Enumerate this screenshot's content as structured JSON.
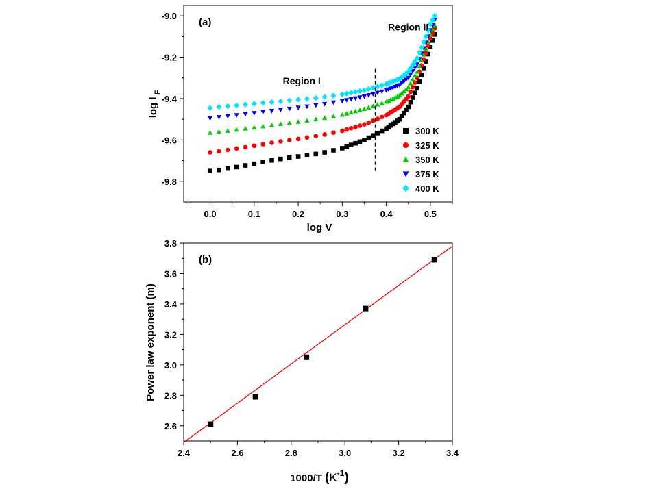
{
  "chart_data": [
    {
      "type": "scatter",
      "panel_label": "(a)",
      "xlabel": "log V",
      "ylabel_main": "log I",
      "ylabel_sub": "F",
      "xlim": [
        -0.06,
        0.55
      ],
      "ylim": [
        -9.9,
        -8.95
      ],
      "xticks": [
        0.0,
        0.1,
        0.2,
        0.3,
        0.4,
        0.5
      ],
      "xtick_labels": [
        "0.0",
        "0.1",
        "0.2",
        "0.3",
        "0.4",
        "0.5"
      ],
      "yticks": [
        -9.8,
        -9.6,
        -9.4,
        -9.2,
        -9.0
      ],
      "ytick_labels": [
        "-9.8",
        "-9.6",
        "-9.4",
        "-9.2",
        "-9.0"
      ],
      "annotations": [
        {
          "text": "Region I",
          "x": 0.165,
          "y": -9.33
        },
        {
          "text": "Region II",
          "x": 0.45,
          "y": -9.07
        }
      ],
      "divider_x": 0.375,
      "divider_y": [
        -9.75,
        -9.25
      ],
      "legend_position": "bottom-right",
      "series": [
        {
          "name": "300 K",
          "marker": "square",
          "color": "#000000",
          "anchors": [
            [
              0.0,
              -9.75
            ],
            [
              0.02,
              -9.745
            ],
            [
              0.05,
              -9.735
            ],
            [
              0.1,
              -9.715
            ],
            [
              0.15,
              -9.695
            ],
            [
              0.2,
              -9.68
            ],
            [
              0.25,
              -9.665
            ],
            [
              0.3,
              -9.64
            ],
            [
              0.35,
              -9.6
            ],
            [
              0.4,
              -9.545
            ],
            [
              0.43,
              -9.5
            ],
            [
              0.45,
              -9.44
            ],
            [
              0.47,
              -9.35
            ],
            [
              0.49,
              -9.22
            ],
            [
              0.5,
              -9.15
            ],
            [
              0.51,
              -9.09
            ]
          ]
        },
        {
          "name": "325 K",
          "marker": "circle",
          "color": "#ff0000",
          "anchors": [
            [
              0.0,
              -9.66
            ],
            [
              0.02,
              -9.655
            ],
            [
              0.05,
              -9.645
            ],
            [
              0.1,
              -9.628
            ],
            [
              0.15,
              -9.61
            ],
            [
              0.2,
              -9.595
            ],
            [
              0.25,
              -9.578
            ],
            [
              0.3,
              -9.556
            ],
            [
              0.35,
              -9.525
            ],
            [
              0.4,
              -9.48
            ],
            [
              0.43,
              -9.44
            ],
            [
              0.45,
              -9.39
            ],
            [
              0.47,
              -9.3
            ],
            [
              0.49,
              -9.18
            ],
            [
              0.5,
              -9.11
            ],
            [
              0.51,
              -9.06
            ]
          ]
        },
        {
          "name": "350 K",
          "marker": "triangle-up",
          "color": "#00cc00",
          "anchors": [
            [
              0.0,
              -9.565
            ],
            [
              0.02,
              -9.56
            ],
            [
              0.05,
              -9.553
            ],
            [
              0.1,
              -9.54
            ],
            [
              0.15,
              -9.525
            ],
            [
              0.2,
              -9.512
            ],
            [
              0.25,
              -9.497
            ],
            [
              0.3,
              -9.478
            ],
            [
              0.35,
              -9.45
            ],
            [
              0.4,
              -9.415
            ],
            [
              0.43,
              -9.385
            ],
            [
              0.45,
              -9.345
            ],
            [
              0.47,
              -9.27
            ],
            [
              0.49,
              -9.16
            ],
            [
              0.5,
              -9.09
            ],
            [
              0.51,
              -9.045
            ]
          ]
        },
        {
          "name": "375 K",
          "marker": "triangle-down",
          "color": "#0000ff",
          "anchors": [
            [
              0.0,
              -9.495
            ],
            [
              0.02,
              -9.49
            ],
            [
              0.05,
              -9.483
            ],
            [
              0.1,
              -9.47
            ],
            [
              0.15,
              -9.457
            ],
            [
              0.2,
              -9.444
            ],
            [
              0.25,
              -9.43
            ],
            [
              0.3,
              -9.412
            ],
            [
              0.35,
              -9.39
            ],
            [
              0.4,
              -9.36
            ],
            [
              0.43,
              -9.335
            ],
            [
              0.45,
              -9.3
            ],
            [
              0.47,
              -9.235
            ],
            [
              0.49,
              -9.13
            ],
            [
              0.5,
              -9.07
            ],
            [
              0.51,
              -9.02
            ]
          ]
        },
        {
          "name": "400 K",
          "marker": "diamond",
          "color": "#00e5ff",
          "anchors": [
            [
              0.0,
              -9.445
            ],
            [
              0.02,
              -9.44
            ],
            [
              0.05,
              -9.435
            ],
            [
              0.1,
              -9.425
            ],
            [
              0.15,
              -9.415
            ],
            [
              0.2,
              -9.405
            ],
            [
              0.25,
              -9.395
            ],
            [
              0.3,
              -9.38
            ],
            [
              0.35,
              -9.36
            ],
            [
              0.4,
              -9.33
            ],
            [
              0.43,
              -9.305
            ],
            [
              0.45,
              -9.27
            ],
            [
              0.47,
              -9.205
            ],
            [
              0.49,
              -9.1
            ],
            [
              0.5,
              -9.04
            ],
            [
              0.51,
              -9.0
            ]
          ]
        }
      ]
    },
    {
      "type": "scatter",
      "panel_label": "(b)",
      "xlabel_main": "1000/T ",
      "xlabel_unit": "K",
      "xlabel_exp": "-1",
      "ylabel": "Power law exponent (m)",
      "xlim": [
        2.4,
        3.4
      ],
      "ylim": [
        2.5,
        3.8
      ],
      "xticks": [
        2.4,
        2.6,
        2.8,
        3.0,
        3.2,
        3.4
      ],
      "xtick_labels": [
        "2.4",
        "2.6",
        "2.8",
        "3.0",
        "3.2",
        "3.4"
      ],
      "yticks": [
        2.6,
        2.8,
        3.0,
        3.2,
        3.4,
        3.6,
        3.8
      ],
      "ytick_labels": [
        "2.6",
        "2.8",
        "3.0",
        "3.2",
        "3.4",
        "3.6",
        "3.8"
      ],
      "points": {
        "x": [
          2.5,
          2.667,
          2.857,
          3.077,
          3.333
        ],
        "y": [
          2.61,
          2.79,
          3.05,
          3.37,
          3.69
        ]
      },
      "fit_line": {
        "x": [
          2.4,
          3.4
        ],
        "y": [
          2.49,
          3.78
        ],
        "color": "#ff0000"
      },
      "marker_color": "#000000"
    }
  ]
}
